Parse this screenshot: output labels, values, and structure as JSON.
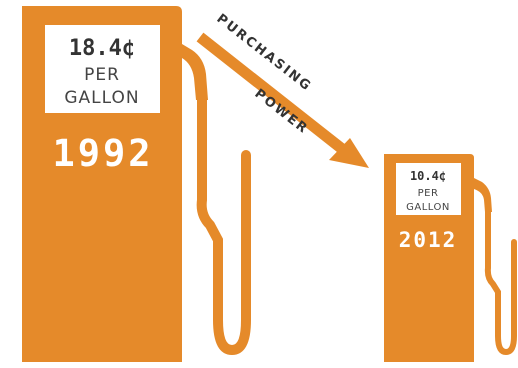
{
  "colors": {
    "pump": "#e58a2a",
    "panel": "#ffffff",
    "text_dark": "#333333",
    "text_light": "#ffffff"
  },
  "pumps": [
    {
      "price": "18.4¢",
      "unit_line1": "PER",
      "unit_line2": "GALLON",
      "year": "1992",
      "icon": "gas-pump-icon"
    },
    {
      "price": "10.4¢",
      "unit_line1": "PER",
      "unit_line2": "GALLON",
      "year": "2012",
      "icon": "gas-pump-icon"
    }
  ],
  "arrow": {
    "line1": "PURCHASING",
    "line2": "POWER",
    "icon": "down-right-arrow-icon"
  }
}
